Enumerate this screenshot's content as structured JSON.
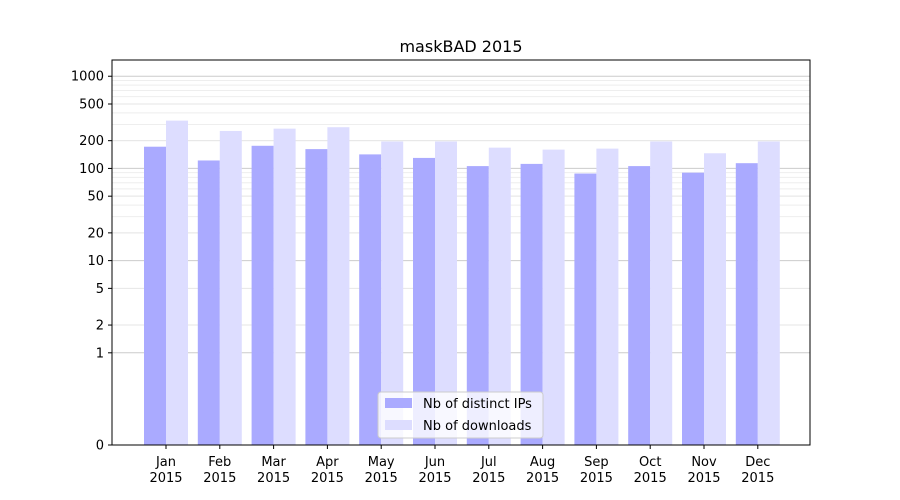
{
  "chart_data": {
    "type": "bar",
    "title": "maskBAD 2015",
    "xlabel": "",
    "ylabel": "",
    "y_scale": "symlog",
    "ylim": [
      0,
      1500
    ],
    "y_ticks": [
      "0",
      "1",
      "2",
      "5",
      "10",
      "20",
      "50",
      "100",
      "200",
      "500",
      "1000"
    ],
    "y_tick_values": [
      0,
      1,
      2,
      5,
      10,
      20,
      50,
      100,
      200,
      500,
      1000
    ],
    "grid": true,
    "legend_position": "lower-center",
    "categories": [
      [
        "Jan",
        "2015"
      ],
      [
        "Feb",
        "2015"
      ],
      [
        "Mar",
        "2015"
      ],
      [
        "Apr",
        "2015"
      ],
      [
        "May",
        "2015"
      ],
      [
        "Jun",
        "2015"
      ],
      [
        "Jul",
        "2015"
      ],
      [
        "Aug",
        "2015"
      ],
      [
        "Sep",
        "2015"
      ],
      [
        "Oct",
        "2015"
      ],
      [
        "Nov",
        "2015"
      ],
      [
        "Dec",
        "2015"
      ]
    ],
    "series": [
      {
        "name": "Nb of distinct IPs",
        "color": "#aaaaff",
        "values": [
          172,
          122,
          176,
          162,
          142,
          130,
          106,
          112,
          88,
          106,
          90,
          114
        ]
      },
      {
        "name": "Nb of downloads",
        "color": "#ddddff",
        "values": [
          330,
          255,
          270,
          280,
          196,
          196,
          168,
          160,
          164,
          196,
          146,
          196
        ]
      }
    ]
  }
}
